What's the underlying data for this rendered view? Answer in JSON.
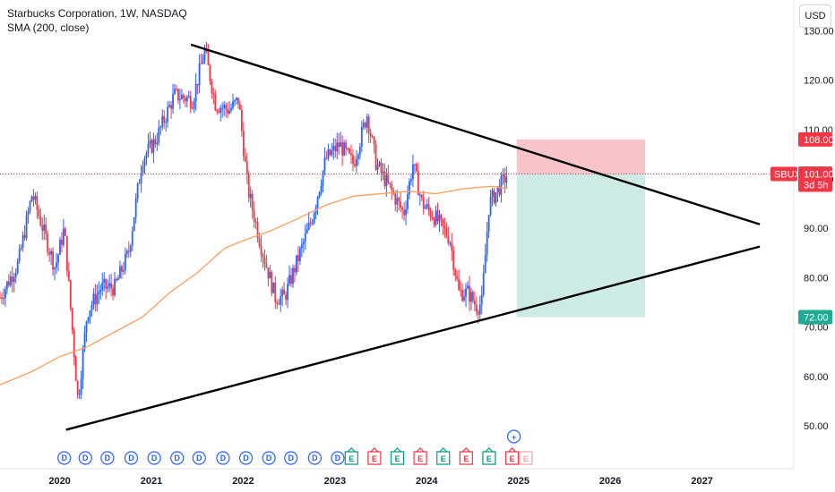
{
  "legend": {
    "title": "Starbucks Corporation, 1W, NASDAQ",
    "indicator": "SMA (200, close)"
  },
  "currency_button": "USD",
  "colors": {
    "up": "#2962ff",
    "down": "#f23645",
    "sma": "#ff9e5e",
    "trendline": "#000000",
    "stop_zone": "#f7c5c9",
    "target_zone": "#cdebe4",
    "price_line": "#f23645",
    "target_badge": "#22ab94"
  },
  "chart_data": {
    "type": "candlestick",
    "ylim": [
      42,
      133
    ],
    "y_ticks": [
      "130.00",
      "120.00",
      "110.00",
      "100.00",
      "90.00",
      "80.00",
      "70.00",
      "60.00",
      "50.00"
    ],
    "y_tick_values": [
      130,
      120,
      110,
      100,
      90,
      80,
      70,
      60,
      50
    ],
    "x_ticks": [
      "2020",
      "2021",
      "2022",
      "2023",
      "2024",
      "2025",
      "2026",
      "2027"
    ],
    "x_tick_years": [
      2020,
      2021,
      2022,
      2023,
      2024,
      2025,
      2026,
      2027
    ],
    "x_range": [
      2019.35,
      2028.0
    ],
    "price_path": [
      [
        2019.35,
        76
      ],
      [
        2019.55,
        83
      ],
      [
        2019.7,
        97
      ],
      [
        2019.85,
        88
      ],
      [
        2019.95,
        82
      ],
      [
        2020.05,
        90
      ],
      [
        2020.2,
        55
      ],
      [
        2020.3,
        73
      ],
      [
        2020.45,
        78
      ],
      [
        2020.6,
        78
      ],
      [
        2020.75,
        85
      ],
      [
        2020.9,
        104
      ],
      [
        2021.05,
        108
      ],
      [
        2021.25,
        117
      ],
      [
        2021.45,
        116
      ],
      [
        2021.58,
        126
      ],
      [
        2021.7,
        115
      ],
      [
        2021.85,
        114
      ],
      [
        2021.95,
        116
      ],
      [
        2022.05,
        98
      ],
      [
        2022.2,
        86
      ],
      [
        2022.35,
        76
      ],
      [
        2022.45,
        76
      ],
      [
        2022.6,
        84
      ],
      [
        2022.75,
        92
      ],
      [
        2022.9,
        104
      ],
      [
        2023.05,
        107
      ],
      [
        2023.2,
        103
      ],
      [
        2023.35,
        113
      ],
      [
        2023.45,
        103
      ],
      [
        2023.6,
        98
      ],
      [
        2023.75,
        93
      ],
      [
        2023.85,
        103
      ],
      [
        2023.95,
        95
      ],
      [
        2024.1,
        92
      ],
      [
        2024.25,
        88
      ],
      [
        2024.35,
        77
      ],
      [
        2024.45,
        77
      ],
      [
        2024.55,
        74
      ],
      [
        2024.6,
        75
      ],
      [
        2024.68,
        95
      ],
      [
        2024.78,
        98
      ],
      [
        2024.88,
        101
      ]
    ],
    "sma_path": [
      [
        2019.35,
        58.3
      ],
      [
        2019.7,
        61
      ],
      [
        2020.0,
        64
      ],
      [
        2020.3,
        66
      ],
      [
        2020.6,
        69
      ],
      [
        2020.9,
        72
      ],
      [
        2021.2,
        77
      ],
      [
        2021.5,
        81
      ],
      [
        2021.8,
        86
      ],
      [
        2022.0,
        87.5
      ],
      [
        2022.3,
        89.5
      ],
      [
        2022.6,
        92
      ],
      [
        2022.9,
        94.7
      ],
      [
        2023.2,
        96.5
      ],
      [
        2023.5,
        97
      ],
      [
        2023.8,
        97.5
      ],
      [
        2024.1,
        97
      ],
      [
        2024.4,
        98
      ],
      [
        2024.7,
        98.5
      ],
      [
        2024.88,
        98
      ]
    ],
    "trendlines": [
      {
        "name": "upper",
        "from": [
          2021.43,
          127.2
        ],
        "to": [
          2027.63,
          90.8
        ]
      },
      {
        "name": "lower",
        "from": [
          2020.07,
          49.2
        ],
        "to": [
          2027.63,
          86.3
        ]
      }
    ],
    "position_tool": {
      "x_start": 2024.98,
      "x_end": 2026.38,
      "entry": 101.0,
      "stop": 108.0,
      "target": 72.0
    },
    "price_labels": [
      {
        "id": "stop",
        "text": "108.00",
        "value": 108.0,
        "color": "#f23645"
      },
      {
        "id": "last",
        "text": "101.07",
        "value": 101.07,
        "color": "#5d606b"
      },
      {
        "id": "target",
        "text": "72.00",
        "value": 72.0,
        "color": "#22ab94"
      }
    ],
    "symbol_badge": {
      "symbol": "SBUX",
      "price": "101.00",
      "countdown": "3d 5h"
    },
    "events": [
      "D",
      "D",
      "D",
      "D",
      "D",
      "D",
      "D",
      "D",
      "D",
      "D",
      "D",
      "D",
      "D",
      "E",
      "E",
      "E",
      "E",
      "E",
      "E",
      "E",
      "E"
    ],
    "event_years": [
      2020.05,
      2020.28,
      2020.52,
      2020.78,
      2021.03,
      2021.28,
      2021.52,
      2021.78,
      2022.03,
      2022.28,
      2022.52,
      2022.78,
      2023.03,
      2023.18,
      2023.43,
      2023.68,
      2023.93,
      2024.18,
      2024.43,
      2024.68,
      2024.93
    ],
    "pending_event": "E",
    "add_icon": "+"
  }
}
